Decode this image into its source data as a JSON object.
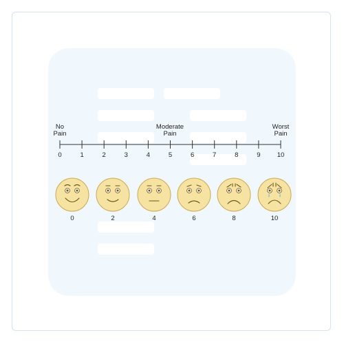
{
  "scale": {
    "anchors": [
      {
        "line1": "No",
        "line2": "Pain"
      },
      {
        "line1": "Moderate",
        "line2": "Pain"
      },
      {
        "line1": "Worst",
        "line2": "Pain"
      }
    ],
    "ticks": [
      "0",
      "1",
      "2",
      "3",
      "4",
      "5",
      "6",
      "7",
      "8",
      "9",
      "10"
    ]
  },
  "faces": [
    {
      "label": "0",
      "expression": "very-happy-face-icon"
    },
    {
      "label": "2",
      "expression": "smiling-face-icon"
    },
    {
      "label": "4",
      "expression": "neutral-face-icon"
    },
    {
      "label": "6",
      "expression": "frowning-face-icon"
    },
    {
      "label": "8",
      "expression": "sad-face-icon"
    },
    {
      "label": "10",
      "expression": "crying-face-icon"
    }
  ],
  "colors": {
    "face_fill": "#f7e3a1",
    "face_stroke": "#c9a94e",
    "feature": "#6b5520",
    "panel": "#f1f8fd",
    "frame_border": "#d6e3ef"
  }
}
